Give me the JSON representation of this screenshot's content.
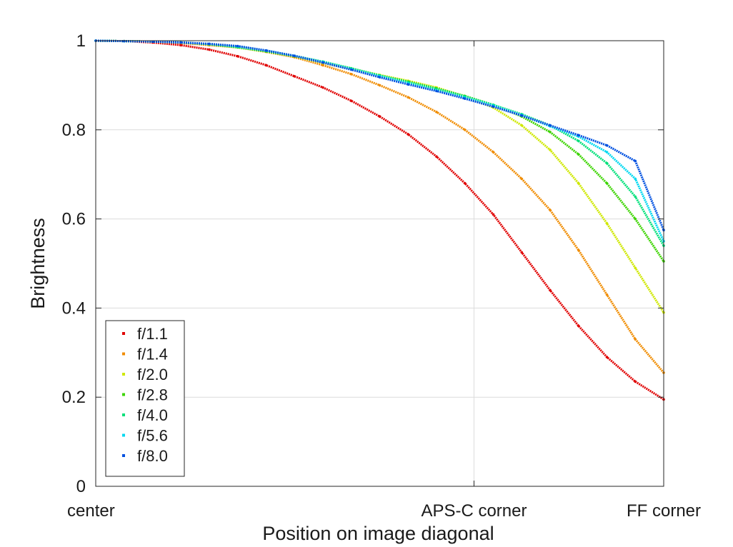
{
  "chart_data": {
    "type": "scatter",
    "title": "",
    "xlabel": "Position on image diagonal",
    "ylabel": "Brightness",
    "xlim": [
      0,
      1
    ],
    "ylim": [
      0,
      1
    ],
    "grid": true,
    "legend_position": "bottom-left",
    "x_ticks": [
      {
        "value": 0,
        "label": "center"
      },
      {
        "value": 0.666,
        "label": "APS-C corner"
      },
      {
        "value": 1,
        "label": "FF corner"
      }
    ],
    "y_ticks": [
      {
        "value": 0,
        "label": "0"
      },
      {
        "value": 0.2,
        "label": "0.2"
      },
      {
        "value": 0.4,
        "label": "0.4"
      },
      {
        "value": 0.6,
        "label": "0.6"
      },
      {
        "value": 0.8,
        "label": "0.8"
      },
      {
        "value": 1,
        "label": "1"
      }
    ],
    "series": [
      {
        "name": "f/1.1",
        "color": "#e00000",
        "x": [
          0,
          0.05,
          0.1,
          0.15,
          0.2,
          0.25,
          0.3,
          0.35,
          0.4,
          0.45,
          0.5,
          0.55,
          0.6,
          0.65,
          0.7,
          0.75,
          0.8,
          0.85,
          0.9,
          0.95,
          1.0
        ],
        "y": [
          1.0,
          0.999,
          0.996,
          0.99,
          0.98,
          0.965,
          0.945,
          0.92,
          0.895,
          0.865,
          0.83,
          0.79,
          0.74,
          0.68,
          0.61,
          0.525,
          0.44,
          0.36,
          0.29,
          0.235,
          0.195
        ]
      },
      {
        "name": "f/1.4",
        "color": "#f08c00",
        "x": [
          0,
          0.05,
          0.1,
          0.15,
          0.2,
          0.25,
          0.3,
          0.35,
          0.4,
          0.45,
          0.5,
          0.55,
          0.6,
          0.65,
          0.7,
          0.75,
          0.8,
          0.85,
          0.9,
          0.95,
          1.0
        ],
        "y": [
          1.0,
          0.999,
          0.998,
          0.995,
          0.99,
          0.985,
          0.975,
          0.963,
          0.945,
          0.925,
          0.9,
          0.873,
          0.84,
          0.8,
          0.75,
          0.69,
          0.62,
          0.53,
          0.43,
          0.33,
          0.255
        ]
      },
      {
        "name": "f/2.0",
        "color": "#cfe800",
        "x": [
          0,
          0.05,
          0.1,
          0.15,
          0.2,
          0.25,
          0.3,
          0.35,
          0.4,
          0.45,
          0.5,
          0.55,
          0.6,
          0.65,
          0.7,
          0.75,
          0.8,
          0.85,
          0.9,
          0.95,
          1.0
        ],
        "y": [
          1.0,
          0.999,
          0.998,
          0.996,
          0.992,
          0.985,
          0.976,
          0.965,
          0.95,
          0.937,
          0.923,
          0.91,
          0.895,
          0.875,
          0.85,
          0.81,
          0.755,
          0.68,
          0.59,
          0.49,
          0.39
        ]
      },
      {
        "name": "f/2.8",
        "color": "#3cd400",
        "x": [
          0,
          0.05,
          0.1,
          0.15,
          0.2,
          0.25,
          0.3,
          0.35,
          0.4,
          0.45,
          0.5,
          0.55,
          0.6,
          0.65,
          0.7,
          0.75,
          0.8,
          0.85,
          0.9,
          0.95,
          1.0
        ],
        "y": [
          1.0,
          0.999,
          0.998,
          0.996,
          0.992,
          0.985,
          0.976,
          0.965,
          0.952,
          0.938,
          0.922,
          0.908,
          0.893,
          0.876,
          0.856,
          0.83,
          0.795,
          0.745,
          0.68,
          0.6,
          0.505
        ]
      },
      {
        "name": "f/4.0",
        "color": "#00e07a",
        "x": [
          0,
          0.05,
          0.1,
          0.15,
          0.2,
          0.25,
          0.3,
          0.35,
          0.4,
          0.45,
          0.5,
          0.55,
          0.6,
          0.65,
          0.7,
          0.75,
          0.8,
          0.85,
          0.9,
          0.95,
          1.0
        ],
        "y": [
          1.0,
          0.999,
          0.998,
          0.996,
          0.992,
          0.986,
          0.977,
          0.966,
          0.953,
          0.938,
          0.922,
          0.907,
          0.892,
          0.875,
          0.856,
          0.835,
          0.81,
          0.775,
          0.725,
          0.65,
          0.54
        ]
      },
      {
        "name": "f/5.6",
        "color": "#00d8f0",
        "x": [
          0,
          0.05,
          0.1,
          0.15,
          0.2,
          0.25,
          0.3,
          0.35,
          0.4,
          0.45,
          0.5,
          0.55,
          0.6,
          0.65,
          0.7,
          0.75,
          0.8,
          0.85,
          0.9,
          0.95,
          1.0
        ],
        "y": [
          1.0,
          0.999,
          0.998,
          0.996,
          0.993,
          0.987,
          0.978,
          0.966,
          0.952,
          0.936,
          0.92,
          0.904,
          0.888,
          0.872,
          0.854,
          0.833,
          0.808,
          0.785,
          0.75,
          0.69,
          0.55
        ]
      },
      {
        "name": "f/8.0",
        "color": "#0050e0",
        "x": [
          0,
          0.05,
          0.1,
          0.15,
          0.2,
          0.25,
          0.3,
          0.35,
          0.4,
          0.45,
          0.5,
          0.55,
          0.6,
          0.65,
          0.7,
          0.75,
          0.8,
          0.85,
          0.9,
          0.95,
          1.0
        ],
        "y": [
          1.0,
          0.999,
          0.998,
          0.996,
          0.993,
          0.988,
          0.978,
          0.966,
          0.951,
          0.935,
          0.918,
          0.902,
          0.887,
          0.87,
          0.852,
          0.832,
          0.81,
          0.788,
          0.765,
          0.73,
          0.575
        ]
      }
    ]
  }
}
